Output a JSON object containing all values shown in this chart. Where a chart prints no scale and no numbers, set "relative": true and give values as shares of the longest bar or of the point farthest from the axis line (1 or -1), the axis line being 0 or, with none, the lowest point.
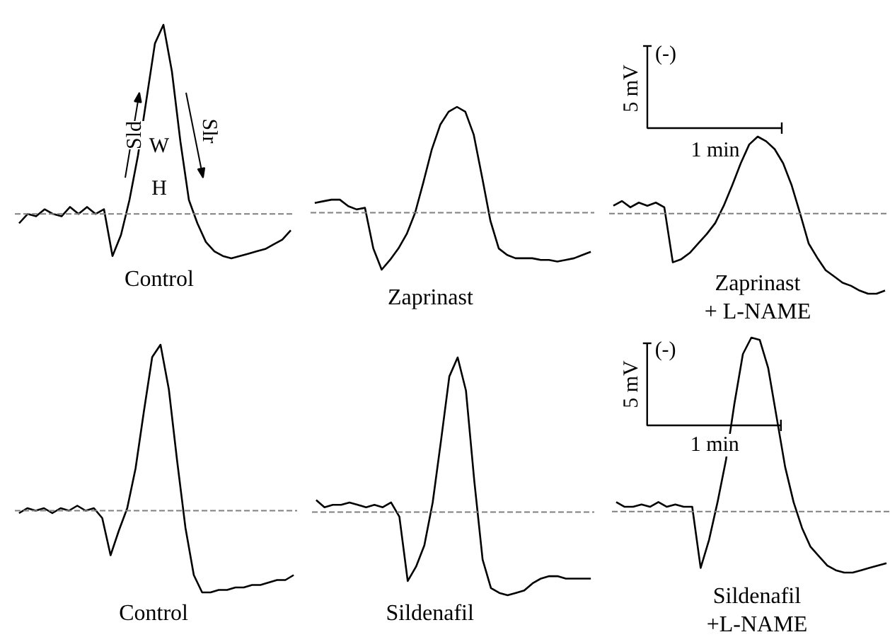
{
  "chart_data": [
    {
      "type": "line",
      "relative": true,
      "xlabel": "Control",
      "annotations": [
        "Sld",
        "Slr",
        "W",
        "H"
      ],
      "categories": [
        null,
        null,
        null,
        null,
        null,
        null,
        null,
        null,
        null,
        null,
        null,
        null,
        null,
        null,
        null,
        null,
        null,
        null,
        null,
        null,
        null,
        null,
        null,
        null,
        null,
        null,
        null,
        null,
        null,
        null,
        null,
        null,
        null
      ],
      "series": [
        {
          "color": "#000000",
          "values": [
            0.15,
            0.19,
            0.18,
            0.21,
            0.19,
            0.18,
            0.22,
            0.19,
            0.22,
            0.19,
            0.21,
            0.01,
            0.1,
            0.25,
            0.44,
            0.68,
            0.92,
            1,
            0.8,
            0.5,
            0.25,
            0.15,
            0.07,
            0.03,
            0.01,
            0,
            0.01,
            0.02,
            0.03,
            0.04,
            0.06,
            0.08,
            0.12
          ]
        }
      ],
      "ref_lines": [
        {
          "axis": "y",
          "value": 0.19,
          "color": "#808080",
          "line_style": "dashed"
        }
      ]
    },
    {
      "type": "line",
      "relative": true,
      "xlabel": "Zaprinast",
      "categories": [
        null,
        null,
        null,
        null,
        null,
        null,
        null,
        null,
        null,
        null,
        null,
        null,
        null,
        null,
        null,
        null,
        null,
        null,
        null,
        null,
        null,
        null,
        null,
        null,
        null,
        null,
        null,
        null,
        null,
        null,
        null,
        null,
        null,
        null
      ],
      "series": [
        {
          "color": "#000000",
          "values": [
            0.41,
            0.42,
            0.43,
            0.43,
            0.39,
            0.37,
            0.38,
            0.13,
            0,
            0.06,
            0.13,
            0.22,
            0.35,
            0.54,
            0.74,
            0.89,
            0.97,
            1,
            0.97,
            0.83,
            0.57,
            0.3,
            0.13,
            0.09,
            0.07,
            0.07,
            0.07,
            0.06,
            0.06,
            0.05,
            0.06,
            0.07,
            0.09,
            0.11
          ]
        }
      ],
      "ref_lines": [
        {
          "axis": "y",
          "value": 0.35,
          "color": "#808080",
          "line_style": "dashed"
        }
      ]
    },
    {
      "type": "line",
      "relative": true,
      "xlabel": "Zaprinast\n+ L-NAME",
      "annotations": [
        "(-)",
        "5 mV",
        "1 min"
      ],
      "categories": [
        null,
        null,
        null,
        null,
        null,
        null,
        null,
        null,
        null,
        null,
        null,
        null,
        null,
        null,
        null,
        null,
        null,
        null,
        null,
        null,
        null,
        null,
        null,
        null,
        null,
        null,
        null,
        null,
        null,
        null,
        null,
        null,
        null
      ],
      "series": [
        {
          "color": "#000000",
          "values": [
            0.56,
            0.59,
            0.55,
            0.58,
            0.56,
            0.58,
            0.55,
            0.2,
            0.22,
            0.26,
            0.32,
            0.38,
            0.45,
            0.56,
            0.69,
            0.83,
            0.95,
            1,
            0.97,
            0.92,
            0.83,
            0.69,
            0.51,
            0.32,
            0.23,
            0.15,
            0.11,
            0.07,
            0.05,
            0.02,
            0,
            0,
            0.02
          ]
        }
      ],
      "ref_lines": [
        {
          "axis": "y",
          "value": 0.51,
          "color": "#808080",
          "line_style": "dashed"
        }
      ]
    },
    {
      "type": "line",
      "relative": true,
      "xlabel": "Control",
      "categories": [
        null,
        null,
        null,
        null,
        null,
        null,
        null,
        null,
        null,
        null,
        null,
        null,
        null,
        null,
        null,
        null,
        null,
        null,
        null,
        null,
        null,
        null,
        null,
        null,
        null,
        null,
        null,
        null,
        null,
        null,
        null,
        null,
        null,
        null
      ],
      "series": [
        {
          "color": "#000000",
          "values": [
            0.32,
            0.34,
            0.33,
            0.34,
            0.32,
            0.34,
            0.33,
            0.35,
            0.33,
            0.34,
            0.3,
            0.15,
            0.25,
            0.34,
            0.5,
            0.73,
            0.95,
            1,
            0.82,
            0.53,
            0.26,
            0.07,
            0,
            0,
            0.01,
            0.01,
            0.02,
            0.02,
            0.03,
            0.03,
            0.04,
            0.05,
            0.05,
            0.07
          ]
        }
      ],
      "ref_lines": [
        {
          "axis": "y",
          "value": 0.33,
          "color": "#808080",
          "line_style": "dashed"
        }
      ]
    },
    {
      "type": "line",
      "relative": true,
      "xlabel": "Sildenafil",
      "categories": [
        null,
        null,
        null,
        null,
        null,
        null,
        null,
        null,
        null,
        null,
        null,
        null,
        null,
        null,
        null,
        null,
        null,
        null,
        null,
        null,
        null,
        null,
        null,
        null,
        null,
        null,
        null,
        null,
        null,
        null,
        null,
        null,
        null,
        null
      ],
      "series": [
        {
          "color": "#000000",
          "values": [
            0.4,
            0.37,
            0.38,
            0.38,
            0.39,
            0.38,
            0.37,
            0.38,
            0.37,
            0.39,
            0.33,
            0.06,
            0.12,
            0.21,
            0.39,
            0.65,
            0.92,
            1,
            0.86,
            0.48,
            0.15,
            0.03,
            0.01,
            0,
            0.01,
            0.02,
            0.05,
            0.07,
            0.08,
            0.08,
            0.07,
            0.07,
            0.07,
            0.07
          ]
        }
      ],
      "ref_lines": [
        {
          "axis": "y",
          "value": 0.35,
          "color": "#808080",
          "line_style": "dashed"
        }
      ]
    },
    {
      "type": "line",
      "relative": true,
      "xlabel": "Sildenafil\n+L-NAME",
      "annotations": [
        "(-)",
        "5 mV",
        "1 min"
      ],
      "categories": [
        null,
        null,
        null,
        null,
        null,
        null,
        null,
        null,
        null,
        null,
        null,
        null,
        null,
        null,
        null,
        null,
        null,
        null,
        null,
        null,
        null,
        null,
        null,
        null,
        null,
        null,
        null,
        null,
        null,
        null,
        null,
        null,
        null
      ],
      "series": [
        {
          "color": "#000000",
          "values": [
            0.3,
            0.28,
            0.28,
            0.29,
            0.28,
            0.3,
            0.28,
            0.29,
            0.28,
            0.28,
            0.02,
            0.14,
            0.3,
            0.48,
            0.72,
            0.93,
            1,
            0.99,
            0.87,
            0.66,
            0.45,
            0.3,
            0.19,
            0.11,
            0.07,
            0.03,
            0.01,
            0,
            0,
            0.01,
            0.02,
            0.03,
            0.04
          ]
        }
      ],
      "ref_lines": [
        {
          "axis": "y",
          "value": 0.26,
          "color": "#808080",
          "line_style": "dashed"
        }
      ]
    }
  ]
}
